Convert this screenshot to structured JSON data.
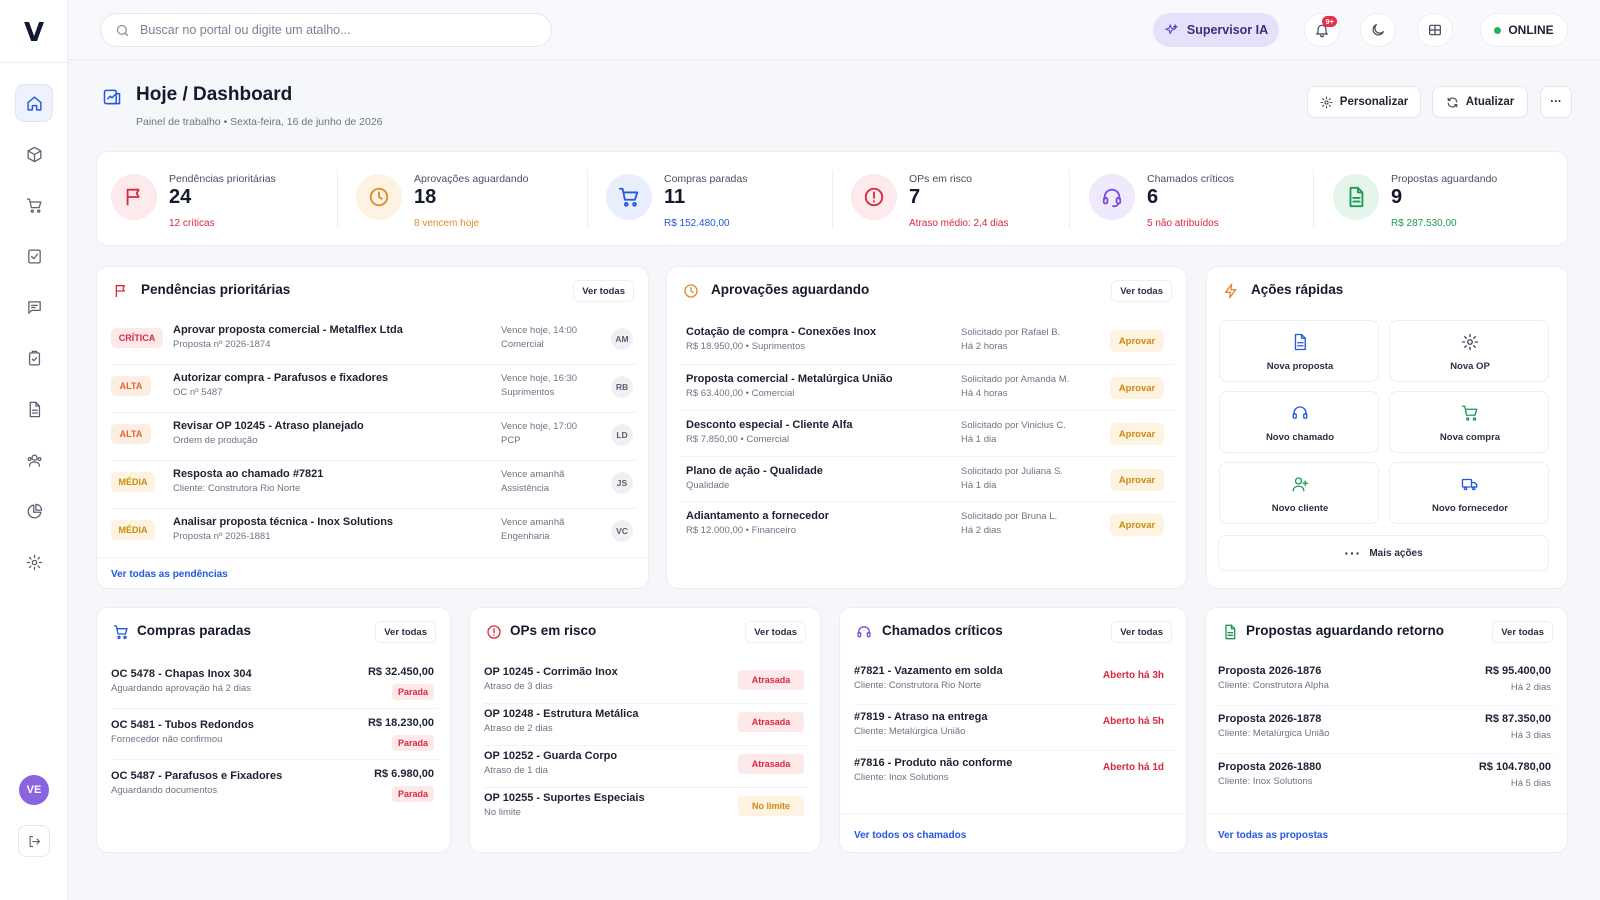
{
  "brand": {
    "logo": "V"
  },
  "sidebar": {
    "items": [
      {
        "icon": "home-icon",
        "active": true
      },
      {
        "icon": "box-icon"
      },
      {
        "icon": "cart-icon"
      },
      {
        "icon": "document-check-icon"
      },
      {
        "icon": "chat-icon"
      },
      {
        "icon": "clipboard-check-icon"
      },
      {
        "icon": "file-text-icon"
      },
      {
        "icon": "users-icon"
      },
      {
        "icon": "pie-chart-icon"
      },
      {
        "icon": "settings-icon"
      }
    ],
    "user_initials": "VE"
  },
  "topbar": {
    "search_placeholder": "Buscar no portal ou digite um atalho...",
    "supervisor_label": "Supervisor IA",
    "notification_badge": "9+",
    "status_label": "ONLINE"
  },
  "header": {
    "title": "Hoje / Dashboard",
    "subtitle": "Painel de trabalho • Sexta-feira, 16 de junho de 2026",
    "customize_label": "Personalizar",
    "refresh_label": "Atualizar",
    "more_label": "···"
  },
  "kpis": [
    {
      "label": "Pendências prioritárias",
      "value": "24",
      "sub": "12 críticas",
      "sub_color": "#d9283f",
      "icon": "flag-icon"
    },
    {
      "label": "Aprovações aguardando",
      "value": "18",
      "sub": "8 vencem hoje",
      "sub_color": "#e1892a",
      "icon": "clock-icon"
    },
    {
      "label": "Compras paradas",
      "value": "11",
      "sub": "R$ 152.480,00",
      "sub_color": "#2557e0",
      "icon": "cart-icon"
    },
    {
      "label": "OPs em risco",
      "value": "7",
      "sub": "Atraso médio: 2,4 dias",
      "sub_color": "#d9283f",
      "icon": "alert-circle-icon"
    },
    {
      "label": "Chamados críticos",
      "value": "6",
      "sub": "5 não atribuídos",
      "sub_color": "#d9283f",
      "icon": "headset-icon"
    },
    {
      "label": "Propostas aguardando",
      "value": "9",
      "sub": "R$ 287.530,00",
      "sub_color": "#1f9a55",
      "icon": "file-text-icon"
    }
  ],
  "pendencias": {
    "title": "Pendências prioritárias",
    "see_all": "Ver todas",
    "footer": "Ver todas as pendências",
    "rows": [
      {
        "tag": "CRÍTICA",
        "level": "critica",
        "title": "Aprovar proposta comercial - Metalflex Ltda",
        "sub": "Proposta nº 2026-1874",
        "due": "Vence hoje, 14:00",
        "area": "Comercial",
        "initials": "AM"
      },
      {
        "tag": "ALTA",
        "level": "alta",
        "title": "Autorizar compra - Parafusos e fixadores",
        "sub": "OC nº 5487",
        "due": "Vence hoje, 16:30",
        "area": "Suprimentos",
        "initials": "RB"
      },
      {
        "tag": "ALTA",
        "level": "alta",
        "title": "Revisar OP 10245 - Atraso planejado",
        "sub": "Ordem de produção",
        "due": "Vence hoje, 17:00",
        "area": "PCP",
        "initials": "LD"
      },
      {
        "tag": "MÉDIA",
        "level": "media",
        "title": "Resposta ao chamado #7821",
        "sub": "Cliente: Construtora Rio Norte",
        "due": "Vence amanhã",
        "area": "Assistência",
        "initials": "JS"
      },
      {
        "tag": "MÉDIA",
        "level": "media",
        "title": "Analisar proposta técnica - Inox Solutions",
        "sub": "Proposta nº 2026-1881",
        "due": "Vence amanhã",
        "area": "Engenharia",
        "initials": "VC"
      }
    ]
  },
  "aprovacoes": {
    "title": "Aprovações aguardando",
    "see_all": "Ver todas",
    "approve_label": "Aprovar",
    "rows": [
      {
        "title": "Cotação de compra - Conexões Inox",
        "sub": "R$ 18.950,00 • Suprimentos",
        "by": "Solicitado por Rafael B.",
        "ago": "Há 2 horas"
      },
      {
        "title": "Proposta comercial - Metalúrgica União",
        "sub": "R$ 63.400,00 • Comercial",
        "by": "Solicitado por Amanda M.",
        "ago": "Há 4 horas"
      },
      {
        "title": "Desconto especial - Cliente Alfa",
        "sub": "R$ 7.850,00 • Comercial",
        "by": "Solicitado por Vinicius C.",
        "ago": "Há 1 dia"
      },
      {
        "title": "Plano de ação - Qualidade",
        "sub": "Qualidade",
        "by": "Solicitado por Juliana S.",
        "ago": "Há 1 dia"
      },
      {
        "title": "Adiantamento a fornecedor",
        "sub": "R$ 12.000,00 • Financeiro",
        "by": "Solicitado por Bruna L.",
        "ago": "Há 2 dias"
      }
    ]
  },
  "acoes": {
    "title": "Ações rápidas",
    "items": [
      {
        "label": "Nova proposta",
        "icon": "file-text-icon"
      },
      {
        "label": "Nova OP",
        "icon": "settings-icon"
      },
      {
        "label": "Novo chamado",
        "icon": "headset-icon"
      },
      {
        "label": "Nova compra",
        "icon": "cart-icon"
      },
      {
        "label": "Novo cliente",
        "icon": "user-plus-icon"
      },
      {
        "label": "Novo fornecedor",
        "icon": "truck-icon"
      }
    ],
    "more_label": "Mais ações"
  },
  "compras": {
    "title": "Compras paradas",
    "see_all": "Ver todas",
    "rows": [
      {
        "title": "OC 5478 - Chapas Inox 304",
        "sub": "Aguardando aprovação há 2 dias",
        "amount": "R$ 32.450,00",
        "status": "Parada"
      },
      {
        "title": "OC 5481 - Tubos Redondos",
        "sub": "Fornecedor não confirmou",
        "amount": "R$ 18.230,00",
        "status": "Parada"
      },
      {
        "title": "OC 5487 - Parafusos e Fixadores",
        "sub": "Aguardando documentos",
        "amount": "R$ 6.980,00",
        "status": "Parada"
      }
    ]
  },
  "ops": {
    "title": "OPs em risco",
    "see_all": "Ver todas",
    "rows": [
      {
        "title": "OP 10245 - Corrimão Inox",
        "sub": "Atraso de 3 dias",
        "status": "Atrasada",
        "tone": "red"
      },
      {
        "title": "OP 10248 - Estrutura Metálica",
        "sub": "Atraso de 2 dias",
        "status": "Atrasada",
        "tone": "red"
      },
      {
        "title": "OP 10252 - Guarda Corpo",
        "sub": "Atraso de 1 dia",
        "status": "Atrasada",
        "tone": "red"
      },
      {
        "title": "OP 10255 - Suportes Especiais",
        "sub": "No limite",
        "status": "No limite",
        "tone": "yellow"
      }
    ]
  },
  "chamados": {
    "title": "Chamados críticos",
    "see_all": "Ver todas",
    "footer": "Ver todos os chamados",
    "rows": [
      {
        "title": "#7821 - Vazamento em solda",
        "sub": "Cliente: Construtora Rio Norte",
        "age": "Aberto há 3h"
      },
      {
        "title": "#7819 - Atraso na entrega",
        "sub": "Cliente: Metalúrgica União",
        "age": "Aberto há 5h"
      },
      {
        "title": "#7816 - Produto não conforme",
        "sub": "Cliente: Inox Solutions",
        "age": "Aberto há 1d"
      }
    ]
  },
  "propostas": {
    "title": "Propostas aguardando retorno",
    "see_all": "Ver todas",
    "footer": "Ver todas as propostas",
    "rows": [
      {
        "title": "Proposta 2026-1876",
        "sub": "Cliente: Construtora Alpha",
        "amount": "R$ 95.400,00",
        "ago": "Há 2 dias"
      },
      {
        "title": "Proposta 2026-1878",
        "sub": "Cliente: Metalúrgica União",
        "amount": "R$ 87.350,00",
        "ago": "Há 3 dias"
      },
      {
        "title": "Proposta 2026-1880",
        "sub": "Cliente: Inox Solutions",
        "amount": "R$ 104.780,00",
        "ago": "Há 5 dias"
      }
    ]
  }
}
